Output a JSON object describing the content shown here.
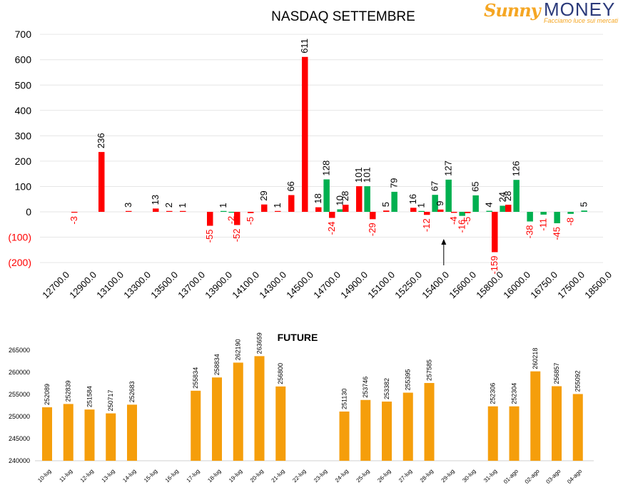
{
  "logo": {
    "brand_first": "Sunny",
    "brand_second": "MONEY",
    "tagline": "Facciamo luce sui mercati"
  },
  "colors": {
    "positive": "#00b050",
    "negative": "#ff0000",
    "future_bar": "#f59e0b",
    "axis_text": "#404040",
    "gridline": "#e6e6e6",
    "logo_orange": "#f5a623",
    "logo_navy": "#2b3a7a"
  },
  "chart_data": [
    {
      "type": "bar",
      "title": "NASDAQ SETTEMBRE",
      "xlabel": "",
      "ylabel": "",
      "ylim": [
        -200,
        700
      ],
      "yticks": [
        "700",
        "600",
        "500",
        "400",
        "300",
        "200",
        "100",
        "0",
        "(100)",
        "(200)"
      ],
      "ytick_values": [
        700,
        600,
        500,
        400,
        300,
        200,
        100,
        0,
        -100,
        -200
      ],
      "grid": true,
      "categories": [
        "12700.0",
        "12900.0",
        "13100.0",
        "13300.0",
        "13500.0",
        "13700.0",
        "13900.0",
        "14100.0",
        "14300.0",
        "14500.0",
        "14700.0",
        "14900.0",
        "15100.0",
        "15250.0",
        "15400.0",
        "15600.0",
        "15800.0",
        "16000.0",
        "16750.0",
        "17500.0",
        "18500.0"
      ],
      "bars": [
        {
          "slot": 0.48,
          "value": -3,
          "color": "negative"
        },
        {
          "slot": 1.48,
          "value": 236,
          "color": "negative"
        },
        {
          "slot": 2.48,
          "value": 3,
          "color": "negative"
        },
        {
          "slot": 3.48,
          "value": 13,
          "color": "negative"
        },
        {
          "slot": 3.98,
          "value": 2,
          "color": "negative"
        },
        {
          "slot": 4.48,
          "value": 1,
          "color": "negative"
        },
        {
          "slot": 5.48,
          "value": -55,
          "color": "negative"
        },
        {
          "slot": 5.98,
          "value": 1,
          "color": "positive"
        },
        {
          "slot": 6.28,
          "value": -2,
          "color": "positive"
        },
        {
          "slot": 6.48,
          "value": -52,
          "color": "negative"
        },
        {
          "slot": 6.98,
          "value": -5,
          "color": "negative"
        },
        {
          "slot": 7.48,
          "value": 29,
          "color": "negative"
        },
        {
          "slot": 7.98,
          "value": 1,
          "color": "negative"
        },
        {
          "slot": 8.48,
          "value": 66,
          "color": "negative"
        },
        {
          "slot": 8.98,
          "value": 611,
          "color": "negative"
        },
        {
          "slot": 9.48,
          "value": 18,
          "color": "negative"
        },
        {
          "slot": 9.78,
          "value": 128,
          "color": "positive"
        },
        {
          "slot": 9.98,
          "value": -24,
          "color": "negative"
        },
        {
          "slot": 10.28,
          "value": 10,
          "color": "positive"
        },
        {
          "slot": 10.48,
          "value": 28,
          "color": "negative"
        },
        {
          "slot": 10.98,
          "value": 101,
          "color": "negative"
        },
        {
          "slot": 11.28,
          "value": 101,
          "color": "positive"
        },
        {
          "slot": 11.48,
          "value": -29,
          "color": "negative"
        },
        {
          "slot": 11.98,
          "value": 5,
          "color": "negative"
        },
        {
          "slot": 12.28,
          "value": 79,
          "color": "positive"
        },
        {
          "slot": 12.98,
          "value": 16,
          "color": "negative"
        },
        {
          "slot": 13.28,
          "value": 1,
          "color": "positive"
        },
        {
          "slot": 13.48,
          "value": -12,
          "color": "negative"
        },
        {
          "slot": 13.78,
          "value": 67,
          "color": "positive"
        },
        {
          "slot": 13.98,
          "value": 9,
          "color": "negative"
        },
        {
          "slot": 14.28,
          "value": 127,
          "color": "positive"
        },
        {
          "slot": 14.48,
          "value": -4,
          "color": "negative"
        },
        {
          "slot": 14.78,
          "value": -16,
          "color": "positive"
        },
        {
          "slot": 14.98,
          "value": -5,
          "color": "negative"
        },
        {
          "slot": 15.28,
          "value": 65,
          "color": "positive"
        },
        {
          "slot": 15.78,
          "value": 4,
          "color": "positive"
        },
        {
          "slot": 15.98,
          "value": -159,
          "color": "negative"
        },
        {
          "slot": 16.28,
          "value": 24,
          "color": "positive"
        },
        {
          "slot": 16.48,
          "value": 28,
          "color": "negative"
        },
        {
          "slot": 16.78,
          "value": 126,
          "color": "positive"
        },
        {
          "slot": 17.28,
          "value": -38,
          "color": "positive"
        },
        {
          "slot": 17.78,
          "value": -11,
          "color": "positive"
        },
        {
          "slot": 18.28,
          "value": -45,
          "color": "positive"
        },
        {
          "slot": 18.78,
          "value": -8,
          "color": "positive"
        },
        {
          "slot": 19.28,
          "value": 5,
          "color": "positive"
        }
      ],
      "annotation_arrow_slot": 14.1
    },
    {
      "type": "bar",
      "title": "FUTURE",
      "xlabel": "",
      "ylabel": "",
      "ylim": [
        240000,
        265000
      ],
      "yticks": [
        "265000",
        "260000",
        "255000",
        "250000",
        "245000",
        "240000"
      ],
      "ytick_values": [
        265000,
        260000,
        255000,
        250000,
        245000,
        240000
      ],
      "grid": false,
      "categories": [
        "10-lug",
        "11-lug",
        "12-lug",
        "13-lug",
        "14-lug",
        "15-lug",
        "16-lug",
        "17-lug",
        "18-lug",
        "19-lug",
        "20-lug",
        "21-lug",
        "22-lug",
        "23-lug",
        "24-lug",
        "25-lug",
        "26-lug",
        "27-lug",
        "28-lug",
        "29-lug",
        "30-lug",
        "31-lug",
        "01-ago",
        "02-ago",
        "03-ago",
        "04-ago"
      ],
      "values": [
        252089,
        252839,
        251584,
        250717,
        252683,
        null,
        null,
        255834,
        258834,
        262190,
        263659,
        256800,
        null,
        null,
        251130,
        253746,
        253382,
        255395,
        257585,
        null,
        null,
        252306,
        252304,
        260218,
        256857,
        255092
      ]
    }
  ]
}
